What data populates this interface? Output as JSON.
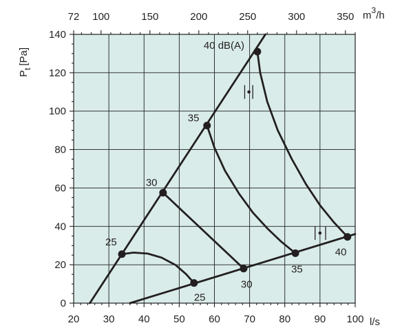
{
  "chart_data": {
    "type": "line",
    "title": "",
    "xlabel": "l/s",
    "ylabel_main": "P",
    "ylabel_sub": "t",
    "ylabel_unit": "[Pa]",
    "secondary_xlabel_main": "m",
    "secondary_xlabel_sup": "3",
    "secondary_xlabel_rest": "/h",
    "xlim": [
      20,
      100
    ],
    "ylim": [
      0,
      140
    ],
    "x_ticks": [
      "20",
      "30",
      "40",
      "50",
      "60",
      "70",
      "80",
      "90",
      "100"
    ],
    "y_ticks": [
      "0",
      "20",
      "40",
      "60",
      "80",
      "100",
      "120",
      "140"
    ],
    "secondary_x_ticks": [
      {
        "label": "72",
        "ls": 20
      },
      {
        "label": "100",
        "ls": 27.78
      },
      {
        "label": "150",
        "ls": 41.67
      },
      {
        "label": "200",
        "ls": 55.56
      },
      {
        "label": "250",
        "ls": 69.44
      },
      {
        "label": "300",
        "ls": 83.33
      },
      {
        "label": "350",
        "ls": 97.22
      }
    ],
    "grid": true,
    "background_color": "#d9ece9",
    "line_color": "#231f20",
    "series": [
      {
        "kind": "boundary-upper",
        "x": [
          24.6,
          74.5
        ],
        "y": [
          0,
          140
        ]
      },
      {
        "kind": "boundary-lower",
        "x": [
          36,
          100
        ],
        "y": [
          0,
          36
        ]
      },
      {
        "kind": "sound-curve",
        "x": [
          33.7,
          37.0,
          41.0,
          45.0,
          49.0,
          52.0,
          54.2
        ],
        "y": [
          25.5,
          26.3,
          25.8,
          23.7,
          19.8,
          15.0,
          10.5
        ]
      },
      {
        "kind": "sound-curve",
        "x": [
          45.4,
          68.3
        ],
        "y": [
          57.5,
          18.0
        ]
      },
      {
        "kind": "sound-curve",
        "x": [
          57.9,
          60.0,
          63.0,
          67.0,
          71.0,
          75.0,
          79.0,
          83.0
        ],
        "y": [
          92.5,
          81.0,
          69.0,
          57.0,
          47.0,
          39.0,
          32.0,
          26.0
        ]
      },
      {
        "kind": "sound-curve",
        "x": [
          72.2,
          73.0,
          75.0,
          78.0,
          82.0,
          86.0,
          90.0,
          94.0,
          97.8
        ],
        "y": [
          131.0,
          120.0,
          105.0,
          90.0,
          75.0,
          62.0,
          51.0,
          42.0,
          34.5
        ]
      }
    ],
    "points": [
      {
        "label": "25",
        "x": 33.7,
        "y": 25.5,
        "label_dx": -24,
        "label_dy": -13
      },
      {
        "label": "30",
        "x": 45.4,
        "y": 57.5,
        "label_dx": -25,
        "label_dy": -10
      },
      {
        "label": "35",
        "x": 57.9,
        "y": 92.5,
        "label_dx": -28,
        "label_dy": -6
      },
      {
        "label": "40 dB(A)",
        "x": 72.2,
        "y": 131.0,
        "label_dx": -78,
        "label_dy": -4
      },
      {
        "label": "25",
        "x": 54.2,
        "y": 10.5,
        "label_dx": 0,
        "label_dy": 26
      },
      {
        "label": "30",
        "x": 68.3,
        "y": 18.0,
        "label_dx": -4,
        "label_dy": 28
      },
      {
        "label": "35",
        "x": 83.0,
        "y": 26.0,
        "label_dx": -6,
        "label_dy": 28
      },
      {
        "label": "40",
        "x": 97.8,
        "y": 34.5,
        "label_dx": -18,
        "label_dy": 27
      }
    ],
    "range_markers": [
      {
        "x": 69.8,
        "y": 110.0,
        "x_low": 68.6,
        "x_high": 70.9
      },
      {
        "x": 90.0,
        "y": 36.5,
        "x_low": 88.6,
        "x_high": 91.6
      }
    ]
  }
}
